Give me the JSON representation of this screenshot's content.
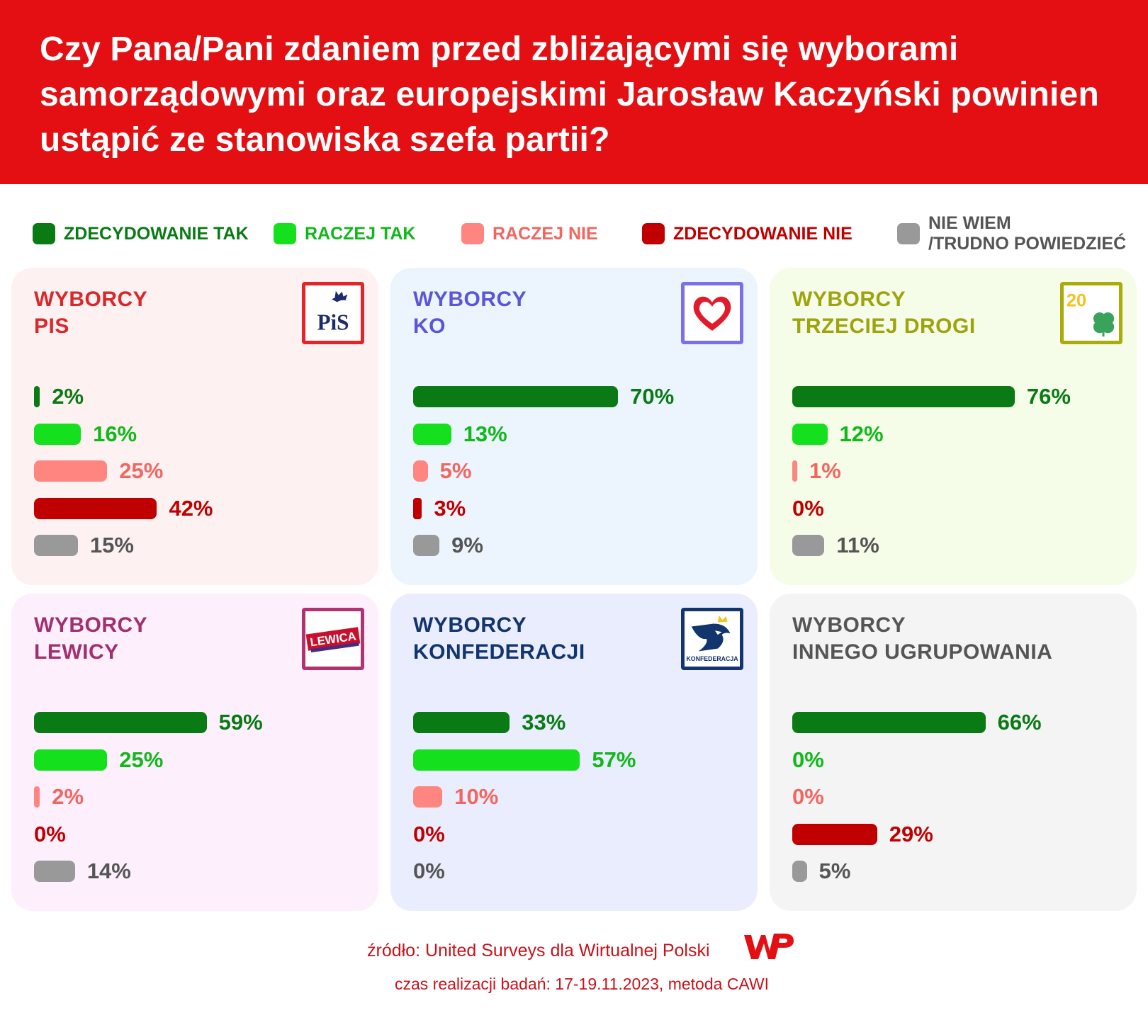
{
  "header": {
    "title": "Czy Pana/Pani zdaniem przed zbliżającymi się wyborami samorządowymi oraz europejskimi Jarosław Kaczyński powinien ustąpić ze stanowiska szefa partii?"
  },
  "legend": [
    {
      "label": "ZDECYDOWANIE TAK",
      "color": "#0a7a14",
      "text_color": "#0a7a14"
    },
    {
      "label": "RACZEJ TAK",
      "color": "#14e01e",
      "text_color": "#10b81a"
    },
    {
      "label": "RACZEJ NIE",
      "color": "#ff8580",
      "text_color": "#f26660"
    },
    {
      "label": "ZDECYDOWANIE NIE",
      "color": "#c00000",
      "text_color": "#c00000"
    },
    {
      "label_line1": "NIE WIEM",
      "label_line2": "/TRUDNO POWIEDZIEĆ",
      "color": "#999999",
      "text_color": "#555555"
    }
  ],
  "logos": {
    "pis": "PiS",
    "lewica": "LEWICA",
    "konfederacja": "KONFEDERACJA",
    "td": "20"
  },
  "chart_data": [
    {
      "type": "bar",
      "orientation": "horizontal",
      "title": "WYBORCY PIS",
      "title_line1": "WYBORCY",
      "title_line2": "PIS",
      "categories": [
        "ZDECYDOWANIE TAK",
        "RACZEJ TAK",
        "RACZEJ NIE",
        "ZDECYDOWANIE NIE",
        "NIE WIEM /TRUDNO POWIEDZIEĆ"
      ],
      "values": [
        2,
        16,
        25,
        42,
        15
      ],
      "labels": [
        "2%",
        "16%",
        "25%",
        "42%",
        "15%"
      ],
      "unit": "%",
      "xlim": [
        0,
        100
      ],
      "bg": "#fdf1f1",
      "title_color": "#d9272a",
      "logo_border": "#e3252a",
      "logo": "pis-logo"
    },
    {
      "type": "bar",
      "orientation": "horizontal",
      "title": "WYBORCY KO",
      "title_line1": "WYBORCY",
      "title_line2": "KO",
      "categories": [
        "ZDECYDOWANIE TAK",
        "RACZEJ TAK",
        "RACZEJ NIE",
        "ZDECYDOWANIE NIE",
        "NIE WIEM /TRUDNO POWIEDZIEĆ"
      ],
      "values": [
        70,
        13,
        5,
        3,
        9
      ],
      "labels": [
        "70%",
        "13%",
        "5%",
        "3%",
        "9%"
      ],
      "unit": "%",
      "xlim": [
        0,
        100
      ],
      "bg": "#ecf4fe",
      "title_color": "#5b55d8",
      "logo_border": "#7a70ea",
      "logo": "heart-logo"
    },
    {
      "type": "bar",
      "orientation": "horizontal",
      "title": "WYBORCY TRZECIEJ DROGI",
      "title_line1": "WYBORCY",
      "title_line2": "TRZECIEJ DROGI",
      "categories": [
        "ZDECYDOWANIE TAK",
        "RACZEJ TAK",
        "RACZEJ NIE",
        "ZDECYDOWANIE NIE",
        "NIE WIEM /TRUDNO POWIEDZIEĆ"
      ],
      "values": [
        76,
        12,
        1,
        0,
        11
      ],
      "labels": [
        "76%",
        "12%",
        "1%",
        "0%",
        "11%"
      ],
      "unit": "%",
      "xlim": [
        0,
        100
      ],
      "bg": "#f5fde9",
      "title_color": "#9ea40e",
      "logo_border": "#a9ad0c",
      "logo": "trzecia-droga-logo"
    },
    {
      "type": "bar",
      "orientation": "horizontal",
      "title": "WYBORCY LEWICY",
      "title_line1": "WYBORCY",
      "title_line2": "LEWICY",
      "categories": [
        "ZDECYDOWANIE TAK",
        "RACZEJ TAK",
        "RACZEJ NIE",
        "ZDECYDOWANIE NIE",
        "NIE WIEM /TRUDNO POWIEDZIEĆ"
      ],
      "values": [
        59,
        25,
        2,
        0,
        14
      ],
      "labels": [
        "59%",
        "25%",
        "2%",
        "0%",
        "14%"
      ],
      "unit": "%",
      "xlim": [
        0,
        100
      ],
      "bg": "#fdeffc",
      "title_color": "#a3306e",
      "logo_border": "#b1336e",
      "logo": "lewica-logo"
    },
    {
      "type": "bar",
      "orientation": "horizontal",
      "title": "WYBORCY KONFEDERACJI",
      "title_line1": "WYBORCY",
      "title_line2": "KONFEDERACJI",
      "categories": [
        "ZDECYDOWANIE TAK",
        "RACZEJ TAK",
        "RACZEJ NIE",
        "ZDECYDOWANIE NIE",
        "NIE WIEM /TRUDNO POWIEDZIEĆ"
      ],
      "values": [
        33,
        57,
        10,
        0,
        0
      ],
      "labels": [
        "33%",
        "57%",
        "10%",
        "0%",
        "0%"
      ],
      "unit": "%",
      "xlim": [
        0,
        100
      ],
      "bg": "#e9edfd",
      "title_color": "#12356e",
      "logo_border": "#12356e",
      "logo": "konfederacja-logo"
    },
    {
      "type": "bar",
      "orientation": "horizontal",
      "title": "WYBORCY INNEGO UGRUPOWANIA",
      "title_line1": "WYBORCY",
      "title_line2": "INNEGO UGRUPOWANIA",
      "categories": [
        "ZDECYDOWANIE TAK",
        "RACZEJ TAK",
        "RACZEJ NIE",
        "ZDECYDOWANIE NIE",
        "NIE WIEM /TRUDNO POWIEDZIEĆ"
      ],
      "values": [
        66,
        0,
        0,
        29,
        5
      ],
      "labels": [
        "66%",
        "0%",
        "0%",
        "29%",
        "5%"
      ],
      "unit": "%",
      "xlim": [
        0,
        100
      ],
      "bg": "#f4f4f4",
      "title_color": "#555555",
      "logo_border": "",
      "logo": ""
    }
  ],
  "footer": {
    "source": "źródło: United Surveys dla Wirtualnej Polski",
    "period": "czas realizacji badań: 17-19.11.2023, metoda CAWI",
    "brand_color": "#e30f12"
  }
}
